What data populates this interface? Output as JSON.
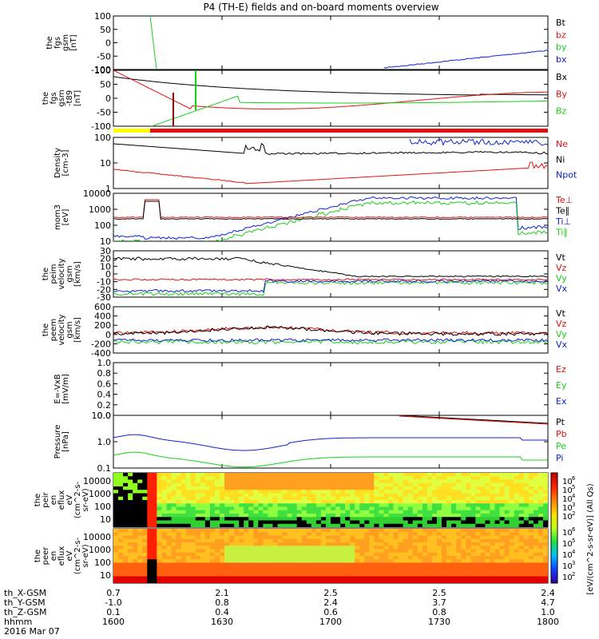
{
  "title": "P4 (TH-E) fields and on-board moments overview",
  "colors": {
    "black": "#000000",
    "red": "#e01010",
    "green": "#19d019",
    "blue": "#1020d0",
    "yellow": "#ffff00"
  },
  "ephemeris": {
    "rows": [
      {
        "label": "th_X-GSM",
        "values": [
          "0.7",
          "2.1",
          "2.5",
          "2.5",
          "2.4"
        ]
      },
      {
        "label": "th_Y-GSM",
        "values": [
          "-1.0",
          "0.8",
          "2.4",
          "3.7",
          "4.7"
        ]
      },
      {
        "label": "th_Z-GSM",
        "values": [
          "0.1",
          "0.4",
          "0.6",
          "0.8",
          "1.0"
        ]
      },
      {
        "label": "hhmm",
        "values": [
          "1600",
          "1630",
          "1700",
          "1730",
          "1800"
        ]
      }
    ],
    "date": "2016 Mar 07"
  },
  "chart_data": [
    {
      "id": "p0",
      "type": "line",
      "ylabel": [
        "the",
        "fgs",
        "gsm",
        "[nT]"
      ],
      "yticks": [
        "100",
        "50",
        "0",
        "-50",
        "-100"
      ],
      "ylim": [
        -100,
        100
      ],
      "legend": [
        {
          "text": "Bt",
          "color": "black"
        },
        {
          "text": "bz",
          "color": "red"
        },
        {
          "text": "by",
          "color": "green"
        },
        {
          "text": "bx",
          "color": "blue"
        }
      ]
    },
    {
      "id": "p1",
      "type": "line",
      "ylabel": [
        "the",
        "fgs",
        "gsm",
        "-t89",
        "[nT]"
      ],
      "yticks": [
        "100",
        "50",
        "0",
        "-50",
        "-100"
      ],
      "ylim": [
        -120,
        120
      ],
      "legend": [
        {
          "text": "Bx",
          "color": "black"
        },
        {
          "text": "By",
          "color": "red"
        },
        {
          "text": "Bz",
          "color": "green"
        }
      ]
    },
    {
      "id": "p2",
      "type": "line",
      "ylabel": [
        "Density",
        "[cm-3]"
      ],
      "yticks": [
        "100",
        "10",
        "1"
      ],
      "yscale": "log",
      "legend": [
        {
          "text": "Ne",
          "color": "red"
        },
        {
          "text": "Ni",
          "color": "black"
        },
        {
          "text": "Npot",
          "color": "blue"
        }
      ]
    },
    {
      "id": "p3",
      "type": "line",
      "ylabel": [
        "mom3",
        "[eV]"
      ],
      "yticks": [
        "10000",
        "1000",
        "100",
        "10"
      ],
      "yscale": "log",
      "legend": [
        {
          "text": "Te⊥",
          "color": "red"
        },
        {
          "text": "Te∥",
          "color": "black"
        },
        {
          "text": "Ti⊥",
          "color": "blue"
        },
        {
          "text": "Ti∥",
          "color": "green"
        }
      ]
    },
    {
      "id": "p4",
      "type": "line",
      "ylabel": [
        "the",
        "peim",
        "velocity",
        "gsm",
        "[km/s]"
      ],
      "yticks": [
        "30",
        "20",
        "10",
        "0",
        "-10",
        "-20",
        "-30"
      ],
      "ylim": [
        -30,
        30
      ],
      "legend": [
        {
          "text": "Vt",
          "color": "black"
        },
        {
          "text": "Vz",
          "color": "red"
        },
        {
          "text": "Vy",
          "color": "green"
        },
        {
          "text": "Vx",
          "color": "blue"
        }
      ]
    },
    {
      "id": "p5",
      "type": "line",
      "ylabel": [
        "the",
        "peem",
        "velocity",
        "gsm",
        "[km/s]"
      ],
      "yticks": [
        "600",
        "400",
        "200",
        "0",
        "-200",
        "-400"
      ],
      "ylim": [
        -400,
        600
      ],
      "legend": [
        {
          "text": "Vt",
          "color": "black"
        },
        {
          "text": "Vz",
          "color": "red"
        },
        {
          "text": "Vy",
          "color": "green"
        },
        {
          "text": "Vx",
          "color": "blue"
        }
      ]
    },
    {
      "id": "p6",
      "type": "line",
      "ylabel": [
        "E=-VxB",
        "[mV/m]"
      ],
      "yticks": [
        "1.0",
        "0.8",
        "0.6",
        "0.4",
        "0.2",
        "0.0"
      ],
      "ylim": [
        0,
        1
      ],
      "legend": [
        {
          "text": "Ez",
          "color": "red"
        },
        {
          "text": "Ey",
          "color": "green"
        },
        {
          "text": "Ex",
          "color": "blue"
        }
      ]
    },
    {
      "id": "p7",
      "type": "line",
      "ylabel": [
        "Pressure",
        "[nPa]"
      ],
      "yticks": [
        "10.0",
        "1.0",
        "0.1"
      ],
      "yscale": "log",
      "legend": [
        {
          "text": "Pt",
          "color": "black"
        },
        {
          "text": "Pb",
          "color": "red"
        },
        {
          "text": "Pe",
          "color": "green"
        },
        {
          "text": "Pi",
          "color": "blue"
        }
      ]
    },
    {
      "id": "p8",
      "type": "heatmap",
      "ylabel": [
        "the",
        "peir",
        "en",
        "eflux",
        "eV",
        "(cm^2-s-",
        "sr-eV)"
      ],
      "yticks": [
        "10000",
        "1000",
        "100",
        "10"
      ],
      "yscale": "log"
    },
    {
      "id": "p9",
      "type": "heatmap",
      "ylabel": [
        "the",
        "peer",
        "en",
        "eflux",
        "eV",
        "(cm^2-s-",
        "sr-eV)"
      ],
      "yticks": [
        "10000",
        "1000",
        "100",
        "10"
      ],
      "yscale": "log"
    }
  ],
  "colorbar": {
    "title": "[eV/(cm^2-s-sr-eV)] (All Qs)",
    "ticks_upper": [
      "10^6",
      "10^5",
      "10^4",
      "10^3",
      "10^2"
    ],
    "ticks_lower": [
      "10^6",
      "10^5",
      "10^4",
      "10^3",
      "10^2"
    ]
  }
}
